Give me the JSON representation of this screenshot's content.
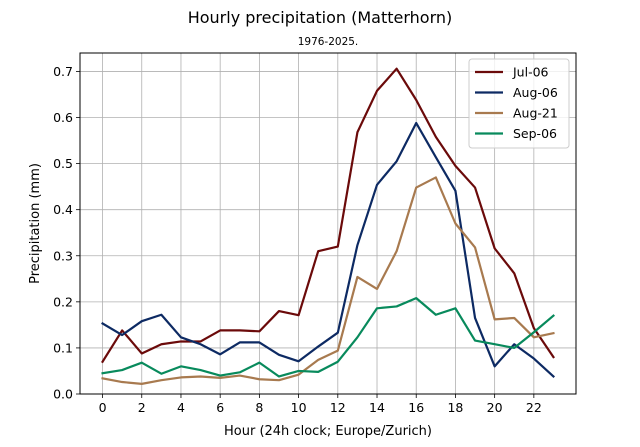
{
  "chart_data": {
    "type": "line",
    "title": "Hourly precipitation (Matterhorn)",
    "subtitle": "1976-2025.",
    "xlabel": "Hour (24h clock; Europe/Zurich)",
    "ylabel": "Precipitation (mm)",
    "xlim": [
      -1.15,
      24.15
    ],
    "ylim": [
      0,
      0.74
    ],
    "x_ticks": [
      0,
      2,
      4,
      6,
      8,
      10,
      12,
      14,
      16,
      18,
      20,
      22
    ],
    "y_ticks": [
      0.0,
      0.1,
      0.2,
      0.3,
      0.4,
      0.5,
      0.6,
      0.7
    ],
    "y_tick_labels": [
      "0.0",
      "0.1",
      "0.2",
      "0.3",
      "0.4",
      "0.5",
      "0.6",
      "0.7"
    ],
    "grid": true,
    "legend_position": "top-right",
    "x": [
      0,
      1,
      2,
      3,
      4,
      5,
      6,
      7,
      8,
      9,
      10,
      11,
      12,
      13,
      14,
      15,
      16,
      17,
      18,
      19,
      20,
      21,
      22,
      23
    ],
    "series": [
      {
        "name": "Jul-06",
        "color": "#6b0a0a",
        "values": [
          0.07,
          0.138,
          0.088,
          0.108,
          0.114,
          0.114,
          0.138,
          0.138,
          0.136,
          0.18,
          0.171,
          0.31,
          0.32,
          0.568,
          0.658,
          0.706,
          0.638,
          0.558,
          0.495,
          0.448,
          0.316,
          0.262,
          0.143,
          0.08
        ]
      },
      {
        "name": "Aug-06",
        "color": "#0d2a63",
        "values": [
          0.153,
          0.128,
          0.158,
          0.172,
          0.123,
          0.108,
          0.086,
          0.112,
          0.112,
          0.085,
          0.071,
          0.103,
          0.133,
          0.323,
          0.454,
          0.505,
          0.588,
          0.514,
          0.441,
          0.165,
          0.06,
          0.108,
          0.077,
          0.038
        ]
      },
      {
        "name": "Aug-21",
        "color": "#a87a4f",
        "values": [
          0.034,
          0.026,
          0.022,
          0.03,
          0.036,
          0.038,
          0.035,
          0.04,
          0.032,
          0.03,
          0.042,
          0.074,
          0.094,
          0.254,
          0.228,
          0.31,
          0.448,
          0.47,
          0.37,
          0.318,
          0.162,
          0.165,
          0.123,
          0.132
        ]
      },
      {
        "name": "Sep-06",
        "color": "#088a5c",
        "values": [
          0.045,
          0.052,
          0.068,
          0.044,
          0.06,
          0.052,
          0.04,
          0.047,
          0.068,
          0.038,
          0.05,
          0.048,
          0.07,
          0.123,
          0.186,
          0.19,
          0.208,
          0.172,
          0.186,
          0.116,
          0.108,
          0.1,
          0.134,
          0.17
        ]
      }
    ]
  }
}
